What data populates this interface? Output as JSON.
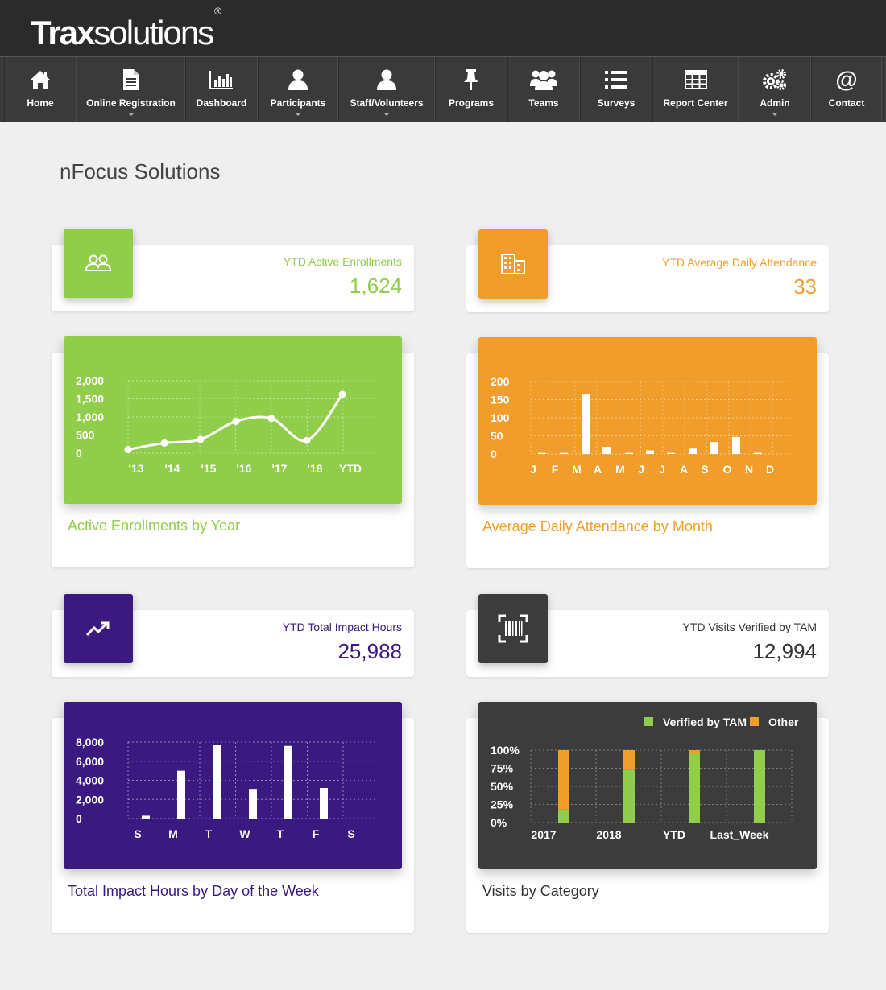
{
  "header": {
    "logo_bold": "Trax",
    "logo_light": "solutions",
    "logo_mark": "®"
  },
  "nav": {
    "items": [
      {
        "label": "Home",
        "icon": "home-icon",
        "dropdown": false
      },
      {
        "label": "Online Registration",
        "icon": "document-icon",
        "dropdown": true
      },
      {
        "label": "Dashboard",
        "icon": "bar-chart-icon",
        "dropdown": false
      },
      {
        "label": "Participants",
        "icon": "person-icon",
        "dropdown": true
      },
      {
        "label": "Staff/Volunteers",
        "icon": "person-icon",
        "dropdown": true
      },
      {
        "label": "Programs",
        "icon": "pushpin-icon",
        "dropdown": false
      },
      {
        "label": "Teams",
        "icon": "group-icon",
        "dropdown": false
      },
      {
        "label": "Surveys",
        "icon": "list-icon",
        "dropdown": false
      },
      {
        "label": "Report Center",
        "icon": "table-icon",
        "dropdown": false
      },
      {
        "label": "Admin",
        "icon": "gears-icon",
        "dropdown": true
      },
      {
        "label": "Contact",
        "icon": "at-sign-icon",
        "dropdown": false
      }
    ]
  },
  "page": {
    "title": "nFocus Solutions"
  },
  "colors": {
    "green": "#8fcd4a",
    "orange": "#f19d2b",
    "purple": "#3a1a80",
    "dark": "#3c3c3c"
  },
  "kpis": {
    "enrollments": {
      "label": "YTD Active Enrollments",
      "value": "1,624",
      "icon": "users-icon"
    },
    "attendance": {
      "label": "YTD Average Daily Attendance",
      "value": "33",
      "icon": "building-icon"
    },
    "impact": {
      "label": "YTD Total Impact Hours",
      "value": "25,988",
      "icon": "trending-up-icon"
    },
    "visits": {
      "label": "YTD Visits Verified by TAM",
      "value": "12,994",
      "icon": "barcode-scan-icon"
    }
  },
  "charts": {
    "enrollments_title": "Active Enrollments by Year",
    "attendance_title": "Average Daily Attendance by Month",
    "impact_title": "Total Impact Hours by Day of the Week",
    "visits_title": "Visits by Category"
  },
  "chart_data": [
    {
      "type": "line",
      "title": "Active Enrollments by Year",
      "categories": [
        "'13",
        "'14",
        "'15",
        "'16",
        "'17",
        "'18",
        "YTD"
      ],
      "values": [
        100,
        280,
        380,
        880,
        960,
        350,
        1624
      ],
      "yticks": [
        "2,000",
        "1,500",
        "1,000",
        "500",
        "0"
      ],
      "ylim": [
        0,
        2000
      ]
    },
    {
      "type": "bar",
      "title": "Average Daily Attendance by Month",
      "categories": [
        "J",
        "F",
        "M",
        "A",
        "M",
        "J",
        "J",
        "A",
        "S",
        "O",
        "N",
        "D"
      ],
      "values": [
        3,
        3,
        165,
        20,
        3,
        10,
        3,
        15,
        33,
        47,
        3,
        0
      ],
      "yticks": [
        "200",
        "150",
        "100",
        "50",
        "0"
      ],
      "ylim": [
        0,
        200
      ]
    },
    {
      "type": "bar",
      "title": "Total Impact Hours by Day of the Week",
      "categories": [
        "S",
        "M",
        "T",
        "W",
        "T",
        "F",
        "S"
      ],
      "values": [
        300,
        5000,
        7700,
        3100,
        7600,
        3200,
        0
      ],
      "yticks": [
        "8,000",
        "6,000",
        "4,000",
        "2,000",
        "0"
      ],
      "ylim": [
        0,
        8000
      ]
    },
    {
      "type": "bar",
      "stacked": true,
      "title": "Visits by Category",
      "categories": [
        "2017",
        "2018",
        "YTD",
        "Last_Week"
      ],
      "series": [
        {
          "name": "Verified by TAM",
          "color": "#8fcd4a",
          "values": [
            18,
            73,
            95,
            100
          ]
        },
        {
          "name": "Other",
          "color": "#f19d2b",
          "values": [
            82,
            27,
            5,
            0
          ]
        }
      ],
      "yticks": [
        "100%",
        "75%",
        "50%",
        "25%",
        "0%"
      ],
      "ylim": [
        0,
        100
      ],
      "legend": "top-right"
    }
  ]
}
